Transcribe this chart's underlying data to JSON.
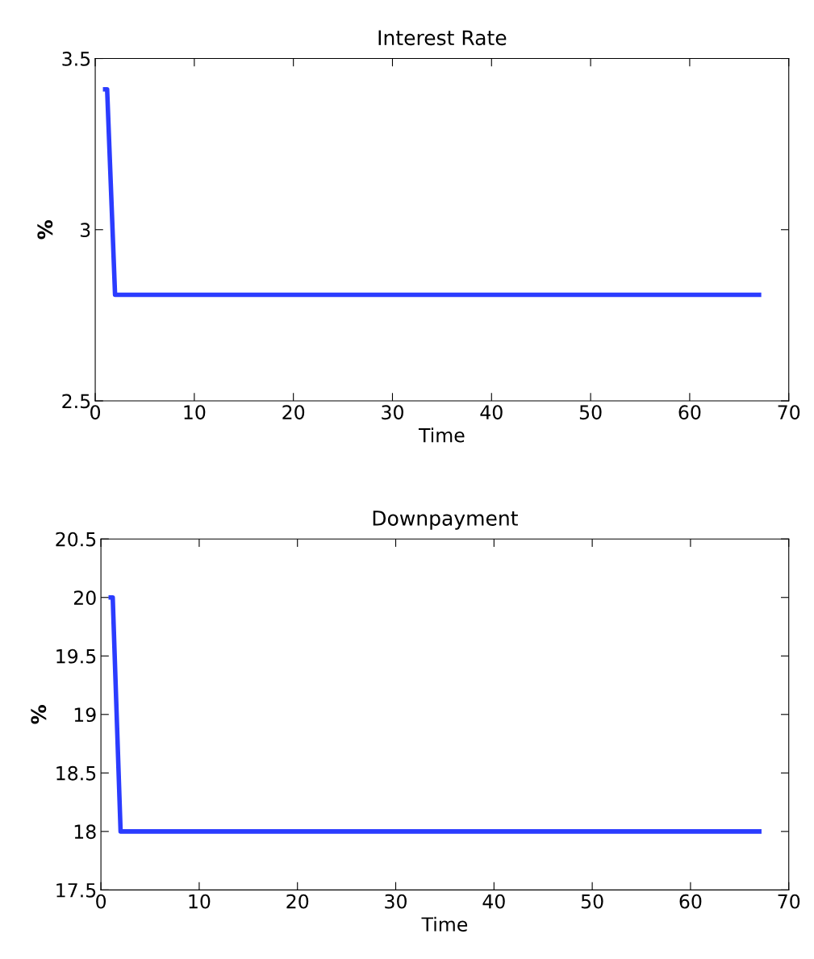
{
  "chart_data": [
    {
      "type": "line",
      "title": "Interest Rate",
      "xlabel": "Time",
      "ylabel": "%",
      "x": [
        1,
        1.2,
        2,
        67
      ],
      "series": [
        {
          "color": "#2b3cff",
          "values": [
            3.41,
            3.41,
            2.81,
            2.81
          ]
        }
      ],
      "xlim": [
        0,
        70
      ],
      "xticks": [
        0,
        10,
        20,
        30,
        40,
        50,
        60,
        70
      ],
      "ylim": [
        2.5,
        3.5
      ],
      "yticks": [
        2.5,
        3,
        3.5
      ],
      "grid": false
    },
    {
      "type": "line",
      "title": "Downpayment",
      "xlabel": "Time",
      "ylabel": "%",
      "x": [
        1,
        1.2,
        2,
        67
      ],
      "series": [
        {
          "color": "#2b3cff",
          "values": [
            20,
            20,
            18,
            18
          ]
        }
      ],
      "xlim": [
        0,
        70
      ],
      "xticks": [
        0,
        10,
        20,
        30,
        40,
        50,
        60,
        70
      ],
      "ylim": [
        17.5,
        20.5
      ],
      "yticks": [
        17.5,
        18,
        18.5,
        19,
        19.5,
        20,
        20.5
      ],
      "grid": false
    }
  ]
}
